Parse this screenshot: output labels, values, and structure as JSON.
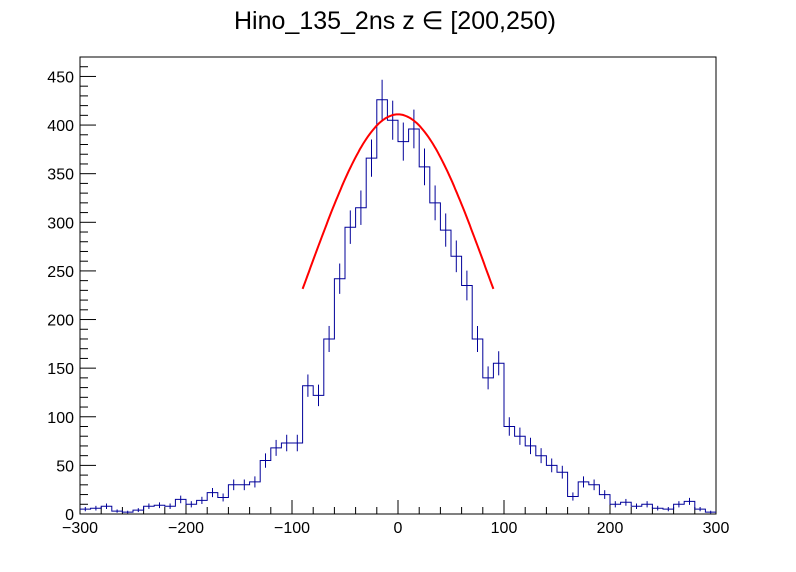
{
  "chart_data": {
    "type": "histogram",
    "title": "Hino_135_2ns z  ∈ [200,250)",
    "xlabel": "",
    "ylabel": "",
    "xlim": [
      -300,
      300
    ],
    "ylim": [
      0,
      470
    ],
    "x_ticks": [
      -300,
      -200,
      -100,
      0,
      100,
      200,
      300
    ],
    "y_ticks": [
      0,
      50,
      100,
      150,
      200,
      250,
      300,
      350,
      400,
      450
    ],
    "grid": false,
    "legend": "none",
    "bin_width": 10,
    "bin_start": -300,
    "series": [
      {
        "style": "step-with-error-bars",
        "color": "#000099",
        "values": [
          5,
          6,
          8,
          3,
          2,
          4,
          8,
          9,
          8,
          15,
          10,
          14,
          22,
          17,
          30,
          30,
          33,
          55,
          68,
          73,
          73,
          132,
          122,
          180,
          242,
          295,
          315,
          366,
          426,
          405,
          383,
          396,
          357,
          320,
          292,
          265,
          235,
          180,
          140,
          155,
          90,
          80,
          70,
          60,
          50,
          43,
          18,
          33,
          30,
          20,
          10,
          12,
          8,
          10,
          6,
          5,
          10,
          13,
          5,
          2
        ],
        "errors": [
          2.2,
          2.4,
          2.8,
          1.7,
          1.4,
          2,
          2.8,
          3,
          2.8,
          3.9,
          3.2,
          3.7,
          4.7,
          4.1,
          5.5,
          5.5,
          5.7,
          7.4,
          8.2,
          8.5,
          8.5,
          11.5,
          11,
          13.4,
          15.6,
          17.2,
          17.7,
          19.1,
          20.6,
          20.1,
          19.6,
          19.9,
          18.9,
          17.9,
          17.1,
          16.3,
          15.3,
          13.4,
          11.8,
          12.4,
          9.5,
          8.9,
          8.4,
          7.7,
          7.1,
          6.6,
          4.2,
          5.7,
          5.5,
          4.5,
          3.2,
          3.5,
          2.8,
          3.2,
          2.4,
          2.2,
          3.2,
          3.6,
          2.2,
          1.4
        ]
      },
      {
        "style": "fit-curve",
        "color": "#ff0000",
        "function": "gaussian",
        "amplitude": 411,
        "mean": 0,
        "sigma": 84,
        "range": [
          -90,
          90
        ]
      }
    ]
  }
}
